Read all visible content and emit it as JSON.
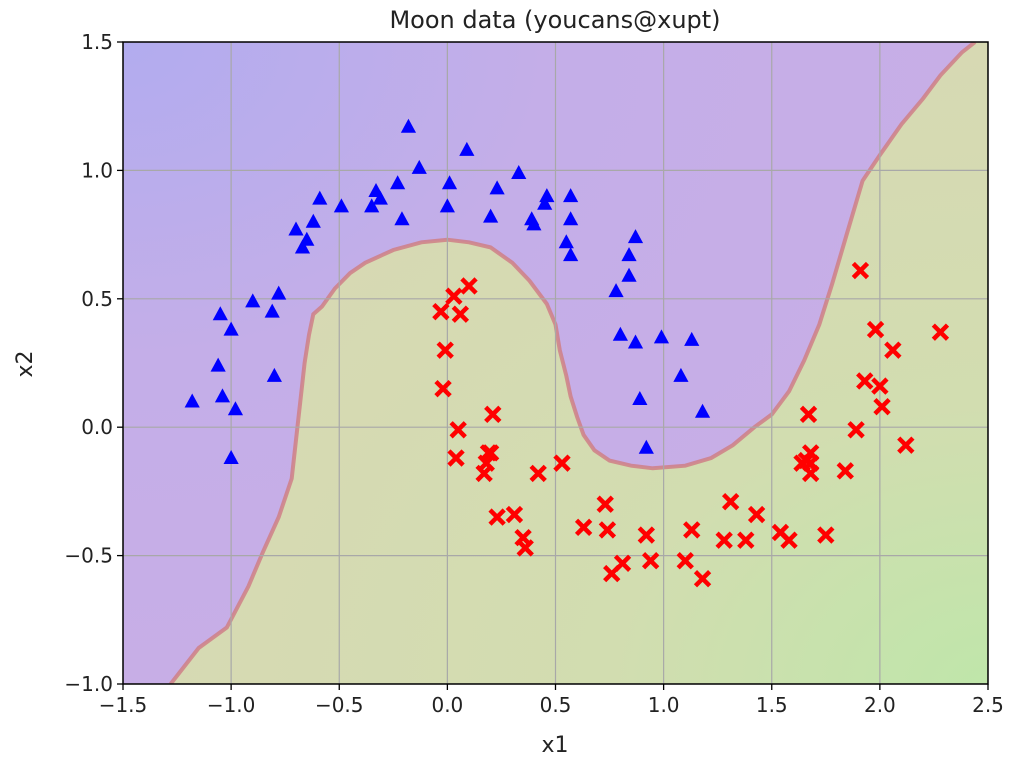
{
  "chart_data": {
    "type": "scatter",
    "title": "Moon data (youcans@xupt)",
    "xlabel": "x1",
    "ylabel": "x2",
    "xlim": [
      -1.5,
      2.5
    ],
    "ylim": [
      -1.0,
      1.5
    ],
    "xticks": [
      -1.5,
      -1.0,
      -0.5,
      0.0,
      0.5,
      1.0,
      1.5,
      2.0,
      2.5
    ],
    "yticks": [
      -1.0,
      -0.5,
      0.0,
      0.5,
      1.0,
      1.5
    ],
    "xtick_labels": [
      "−1.5",
      "−1.0",
      "−0.5",
      "0.0",
      "0.5",
      "1.0",
      "1.5",
      "2.0",
      "2.5"
    ],
    "ytick_labels": [
      "−1.0",
      "−0.5",
      "0.0",
      "0.5",
      "1.0",
      "1.5"
    ],
    "grid": true,
    "region_colors": {
      "class0": "#c8aee6",
      "class0_far": "#b4acef",
      "class1": "#d8d8b4",
      "class1_far": "#c2e6aa"
    },
    "series": [
      {
        "marker": "triangle",
        "color": "#0000ff",
        "points": [
          [
            -1.18,
            0.1
          ],
          [
            -1.05,
            0.44
          ],
          [
            -1.06,
            0.24
          ],
          [
            -1.04,
            0.12
          ],
          [
            -1.0,
            0.38
          ],
          [
            -0.98,
            0.07
          ],
          [
            -1.0,
            -0.12
          ],
          [
            -0.9,
            0.49
          ],
          [
            -0.81,
            0.45
          ],
          [
            -0.78,
            0.52
          ],
          [
            -0.8,
            0.2
          ],
          [
            -0.7,
            0.77
          ],
          [
            -0.67,
            0.7
          ],
          [
            -0.65,
            0.73
          ],
          [
            -0.62,
            0.8
          ],
          [
            -0.59,
            0.89
          ],
          [
            -0.49,
            0.86
          ],
          [
            -0.35,
            0.86
          ],
          [
            -0.33,
            0.92
          ],
          [
            -0.31,
            0.89
          ],
          [
            -0.23,
            0.95
          ],
          [
            -0.21,
            0.81
          ],
          [
            -0.18,
            1.17
          ],
          [
            -0.13,
            1.01
          ],
          [
            0.01,
            0.95
          ],
          [
            0.0,
            0.86
          ],
          [
            0.09,
            1.08
          ],
          [
            0.2,
            0.82
          ],
          [
            0.23,
            0.93
          ],
          [
            0.33,
            0.99
          ],
          [
            0.39,
            0.81
          ],
          [
            0.4,
            0.79
          ],
          [
            0.45,
            0.87
          ],
          [
            0.46,
            0.9
          ],
          [
            0.55,
            0.72
          ],
          [
            0.57,
            0.9
          ],
          [
            0.57,
            0.81
          ],
          [
            0.57,
            0.67
          ],
          [
            0.78,
            0.53
          ],
          [
            0.8,
            0.36
          ],
          [
            0.84,
            0.59
          ],
          [
            0.84,
            0.67
          ],
          [
            0.87,
            0.74
          ],
          [
            0.87,
            0.33
          ],
          [
            0.89,
            0.11
          ],
          [
            0.92,
            -0.08
          ],
          [
            0.99,
            0.35
          ],
          [
            1.08,
            0.2
          ],
          [
            1.13,
            0.34
          ],
          [
            1.18,
            0.06
          ]
        ]
      },
      {
        "marker": "x",
        "color": "#ff0000",
        "points": [
          [
            -0.03,
            0.45
          ],
          [
            -0.01,
            0.3
          ],
          [
            -0.02,
            0.15
          ],
          [
            0.03,
            0.51
          ],
          [
            0.06,
            0.44
          ],
          [
            0.1,
            0.55
          ],
          [
            0.04,
            -0.12
          ],
          [
            0.05,
            -0.01
          ],
          [
            0.17,
            -0.18
          ],
          [
            0.18,
            -0.14
          ],
          [
            0.19,
            -0.1
          ],
          [
            0.2,
            -0.1
          ],
          [
            0.21,
            0.05
          ],
          [
            0.23,
            -0.35
          ],
          [
            0.31,
            -0.34
          ],
          [
            0.35,
            -0.43
          ],
          [
            0.36,
            -0.47
          ],
          [
            0.42,
            -0.18
          ],
          [
            0.53,
            -0.14
          ],
          [
            0.63,
            -0.39
          ],
          [
            0.73,
            -0.3
          ],
          [
            0.74,
            -0.4
          ],
          [
            0.76,
            -0.57
          ],
          [
            0.81,
            -0.53
          ],
          [
            0.92,
            -0.42
          ],
          [
            0.94,
            -0.52
          ],
          [
            1.1,
            -0.52
          ],
          [
            1.13,
            -0.4
          ],
          [
            1.18,
            -0.59
          ],
          [
            1.28,
            -0.44
          ],
          [
            1.31,
            -0.29
          ],
          [
            1.38,
            -0.44
          ],
          [
            1.43,
            -0.34
          ],
          [
            1.54,
            -0.41
          ],
          [
            1.58,
            -0.44
          ],
          [
            1.64,
            -0.14
          ],
          [
            1.66,
            -0.13
          ],
          [
            1.67,
            0.05
          ],
          [
            1.68,
            -0.1
          ],
          [
            1.68,
            -0.14
          ],
          [
            1.68,
            -0.18
          ],
          [
            1.75,
            -0.42
          ],
          [
            1.84,
            -0.17
          ],
          [
            1.89,
            -0.01
          ],
          [
            1.91,
            0.61
          ],
          [
            1.93,
            0.18
          ],
          [
            1.98,
            0.38
          ],
          [
            2.0,
            0.16
          ],
          [
            2.01,
            0.08
          ],
          [
            2.06,
            0.3
          ],
          [
            2.12,
            -0.07
          ],
          [
            2.28,
            0.37
          ]
        ]
      }
    ],
    "boundary": [
      [
        -1.28,
        -1.0
      ],
      [
        -1.15,
        -0.86
      ],
      [
        -1.02,
        -0.78
      ],
      [
        -0.92,
        -0.62
      ],
      [
        -0.85,
        -0.48
      ],
      [
        -0.78,
        -0.35
      ],
      [
        -0.72,
        -0.2
      ],
      [
        -0.7,
        -0.05
      ],
      [
        -0.68,
        0.1
      ],
      [
        -0.66,
        0.25
      ],
      [
        -0.64,
        0.36
      ],
      [
        -0.62,
        0.44
      ],
      [
        -0.58,
        0.47
      ],
      [
        -0.52,
        0.54
      ],
      [
        -0.45,
        0.6
      ],
      [
        -0.38,
        0.64
      ],
      [
        -0.25,
        0.69
      ],
      [
        -0.12,
        0.72
      ],
      [
        0.0,
        0.73
      ],
      [
        0.1,
        0.72
      ],
      [
        0.2,
        0.7
      ],
      [
        0.3,
        0.64
      ],
      [
        0.38,
        0.57
      ],
      [
        0.46,
        0.48
      ],
      [
        0.5,
        0.4
      ],
      [
        0.52,
        0.3
      ],
      [
        0.55,
        0.2
      ],
      [
        0.57,
        0.12
      ],
      [
        0.6,
        0.04
      ],
      [
        0.63,
        -0.03
      ],
      [
        0.68,
        -0.09
      ],
      [
        0.75,
        -0.13
      ],
      [
        0.85,
        -0.15
      ],
      [
        0.95,
        -0.16
      ],
      [
        1.1,
        -0.15
      ],
      [
        1.22,
        -0.12
      ],
      [
        1.32,
        -0.07
      ],
      [
        1.42,
        0.0
      ],
      [
        1.5,
        0.05
      ],
      [
        1.58,
        0.14
      ],
      [
        1.65,
        0.26
      ],
      [
        1.72,
        0.4
      ],
      [
        1.78,
        0.56
      ],
      [
        1.85,
        0.76
      ],
      [
        1.92,
        0.96
      ],
      [
        2.0,
        1.06
      ],
      [
        2.1,
        1.18
      ],
      [
        2.2,
        1.28
      ],
      [
        2.28,
        1.37
      ],
      [
        2.38,
        1.46
      ],
      [
        2.44,
        1.5
      ]
    ]
  }
}
